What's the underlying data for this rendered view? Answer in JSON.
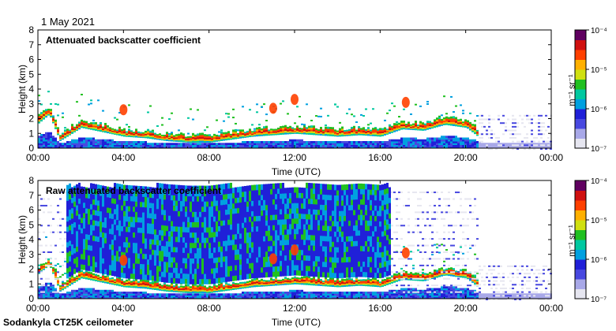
{
  "header": {
    "date": "1 May 2021"
  },
  "footer": {
    "instrument": "Sodankyla CT25K ceilometer"
  },
  "colors": {
    "colormap": [
      "#e6e6f0",
      "#a8a8e8",
      "#4848e0",
      "#2020d8",
      "#00a0e0",
      "#00c8a0",
      "#20c020",
      "#d0e010",
      "#ffb000",
      "#ff4000",
      "#d01010",
      "#600060"
    ]
  },
  "chart_data": [
    {
      "type": "heatmap",
      "title": "Attenuated backscatter coefficient",
      "xlabel": "Time (UTC)",
      "ylabel": "Height (km)",
      "x_ticks": [
        "00:00",
        "04:00",
        "08:00",
        "12:00",
        "16:00",
        "20:00",
        "00:00"
      ],
      "y_ticks": [
        "0",
        "1",
        "2",
        "3",
        "4",
        "5",
        "6",
        "7",
        "8"
      ],
      "xlim_hours": [
        0,
        24
      ],
      "ylim": [
        0,
        8
      ],
      "colorbar": {
        "label": "m⁻¹ sr⁻¹",
        "ticks": [
          "10⁻⁷",
          "10⁻⁶",
          "10⁻⁵",
          "10⁻⁴"
        ],
        "range_log10": [
          -7,
          -4
        ]
      },
      "cloud_base_km": [
        [
          0,
          1.8
        ],
        [
          0.5,
          2.4
        ],
        [
          1,
          0.6
        ],
        [
          2,
          1.5
        ],
        [
          3,
          1.2
        ],
        [
          4,
          0.9
        ],
        [
          5,
          0.8
        ],
        [
          6,
          0.6
        ],
        [
          7,
          0.5
        ],
        [
          8,
          0.5
        ],
        [
          9,
          0.7
        ],
        [
          10,
          0.9
        ],
        [
          11,
          1.0
        ],
        [
          12,
          1.1
        ],
        [
          13,
          1.0
        ],
        [
          14,
          0.9
        ],
        [
          15,
          1.0
        ],
        [
          16,
          0.9
        ],
        [
          17,
          1.4
        ],
        [
          18,
          1.3
        ],
        [
          19,
          1.7
        ],
        [
          20,
          1.5
        ],
        [
          21,
          0.4
        ],
        [
          24,
          0.4
        ]
      ]
    },
    {
      "type": "heatmap",
      "title": "Raw attenuated backscatter coefficient",
      "xlabel": "Time (UTC)",
      "ylabel": "Height (km)",
      "x_ticks": [
        "00:00",
        "04:00",
        "08:00",
        "12:00",
        "16:00",
        "20:00",
        "00:00"
      ],
      "y_ticks": [
        "0",
        "1",
        "2",
        "3",
        "4",
        "5",
        "6",
        "7",
        "8"
      ],
      "xlim_hours": [
        0,
        24
      ],
      "ylim": [
        0,
        8
      ],
      "colorbar": {
        "label": "m⁻¹ sr⁻¹",
        "ticks": [
          "10⁻⁷",
          "10⁻⁶",
          "10⁻⁵",
          "10⁻⁴"
        ],
        "range_log10": [
          -7,
          -4
        ]
      },
      "noise_top_km": 7.5
    }
  ]
}
